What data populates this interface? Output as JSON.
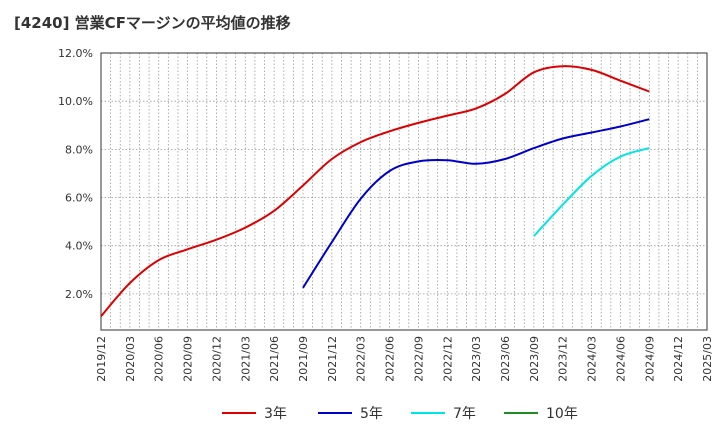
{
  "chart_data": {
    "type": "line",
    "title": "[4240]  営業CFマージンの平均値の推移",
    "xlabel": "",
    "ylabel": "",
    "ylim": [
      0.005,
      0.12
    ],
    "y_ticks": [
      "2.0%",
      "4.0%",
      "6.0%",
      "8.0%",
      "10.0%",
      "12.0%"
    ],
    "y_tick_values": [
      0.02,
      0.04,
      0.06,
      0.08,
      0.1,
      0.12
    ],
    "x_ticks": [
      "2019/12",
      "2020/03",
      "2020/06",
      "2020/09",
      "2020/12",
      "2021/03",
      "2021/06",
      "2021/09",
      "2021/12",
      "2022/03",
      "2022/06",
      "2022/09",
      "2022/12",
      "2023/03",
      "2023/06",
      "2023/09",
      "2023/12",
      "2024/03",
      "2024/06",
      "2024/09",
      "2024/12",
      "2025/03"
    ],
    "grid": true,
    "legend_position": "bottom",
    "series": [
      {
        "name": "3年",
        "color": "#dd0000",
        "values": [
          0.0107,
          0.0245,
          0.034,
          0.0385,
          0.0425,
          0.0475,
          0.0545,
          0.065,
          0.076,
          0.083,
          0.0875,
          0.091,
          0.094,
          0.097,
          0.103,
          0.112,
          0.1145,
          0.113,
          0.1085,
          0.104,
          null,
          null
        ]
      },
      {
        "name": "5年",
        "color": "#0000cc",
        "values": [
          null,
          null,
          null,
          null,
          null,
          null,
          null,
          0.0225,
          0.0415,
          0.0595,
          0.071,
          0.075,
          0.0755,
          0.074,
          0.076,
          0.0805,
          0.0845,
          0.087,
          0.0895,
          0.0925,
          null,
          null
        ]
      },
      {
        "name": "7年",
        "color": "#00e5e5",
        "values": [
          null,
          null,
          null,
          null,
          null,
          null,
          null,
          null,
          null,
          null,
          null,
          null,
          null,
          null,
          null,
          0.044,
          0.057,
          0.069,
          0.077,
          0.0805,
          null,
          null
        ]
      },
      {
        "name": "10年",
        "color": "#228b22",
        "values": [
          null,
          null,
          null,
          null,
          null,
          null,
          null,
          null,
          null,
          null,
          null,
          null,
          null,
          null,
          null,
          null,
          null,
          null,
          null,
          null,
          null,
          null
        ]
      }
    ]
  }
}
